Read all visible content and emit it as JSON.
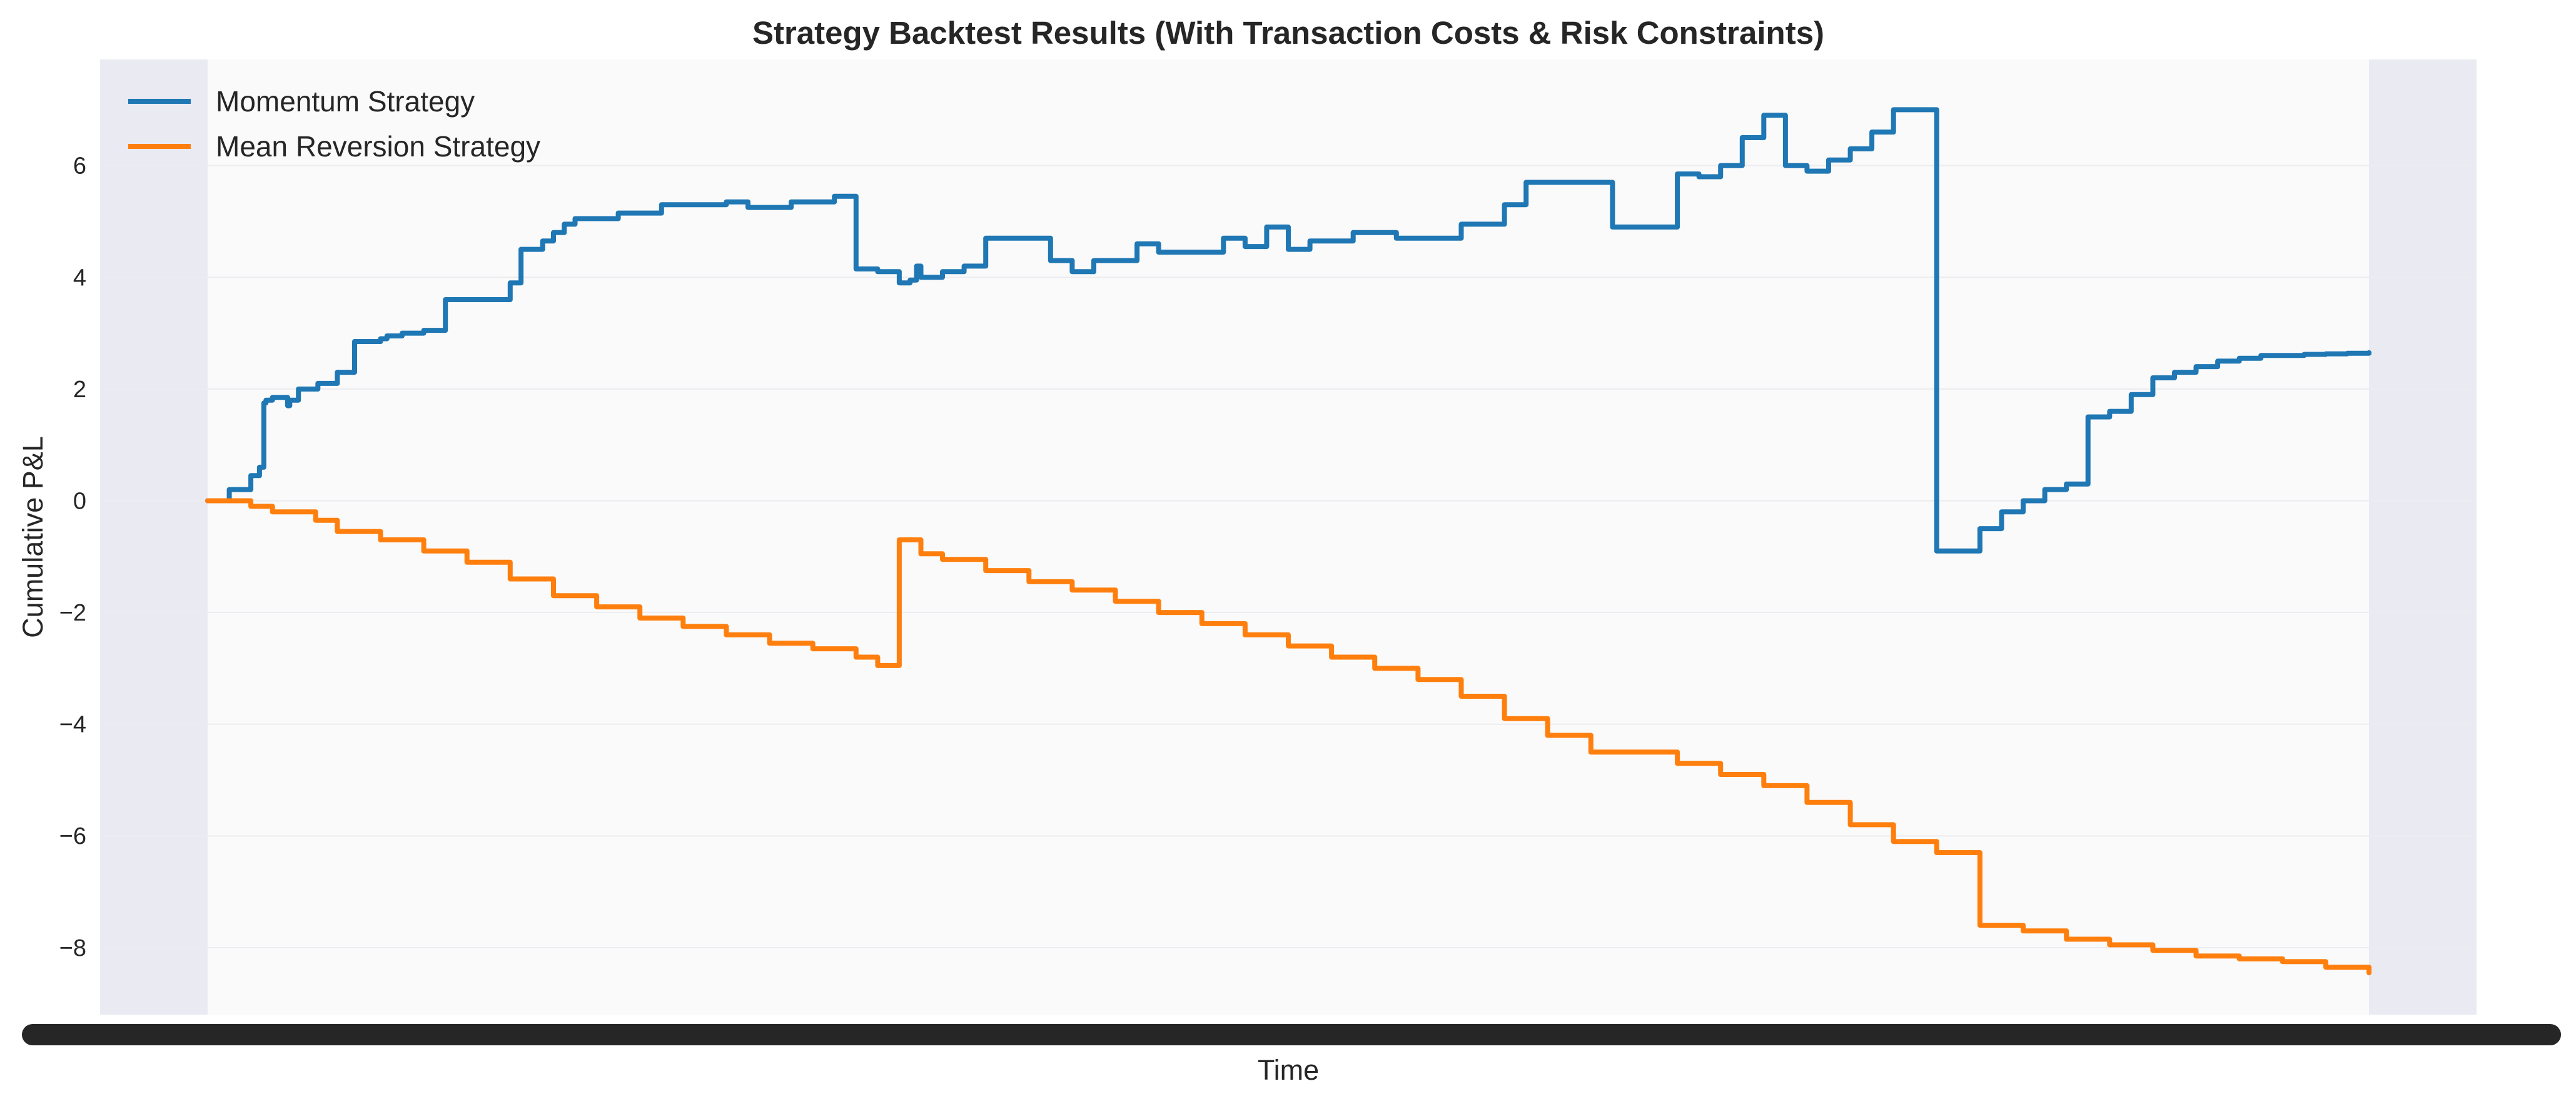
{
  "chart_data": {
    "type": "line",
    "title": "Strategy Backtest Results (With Transaction Costs & Risk Constraints)",
    "xlabel": "Time",
    "ylabel": "Cumulative P&L",
    "ylim": [
      -9.2,
      7.9
    ],
    "yticks": [
      -8,
      -6,
      -4,
      -2,
      0,
      2,
      4,
      6
    ],
    "ytick_labels": [
      "−8",
      "−6",
      "−4",
      "−2",
      "0",
      "2",
      "4",
      "6"
    ],
    "xlim": [
      -0.05,
      1.05
    ],
    "x_tick_labels_overlapping": true,
    "grid": true,
    "legend_position": "upper-left",
    "colors": {
      "background": "#eaeaf2",
      "plot_area_shaded": "#fafafa",
      "grid": "#ececf1",
      "text": "#262626"
    },
    "series": [
      {
        "name": "Momentum Strategy",
        "color": "#1f77b4",
        "x": [
          0.0,
          0.01,
          0.02,
          0.024,
          0.026,
          0.027,
          0.03,
          0.037,
          0.038,
          0.042,
          0.05,
          0.051,
          0.06,
          0.068,
          0.08,
          0.083,
          0.09,
          0.095,
          0.1,
          0.11,
          0.14,
          0.145,
          0.155,
          0.16,
          0.165,
          0.17,
          0.19,
          0.21,
          0.23,
          0.24,
          0.25,
          0.27,
          0.29,
          0.3,
          0.31,
          0.32,
          0.325,
          0.328,
          0.33,
          0.34,
          0.35,
          0.36,
          0.39,
          0.4,
          0.41,
          0.43,
          0.44,
          0.47,
          0.48,
          0.49,
          0.5,
          0.51,
          0.53,
          0.55,
          0.58,
          0.6,
          0.61,
          0.65,
          0.68,
          0.69,
          0.7,
          0.71,
          0.72,
          0.73,
          0.74,
          0.75,
          0.76,
          0.77,
          0.78,
          0.79,
          0.8,
          0.82,
          0.83,
          0.84,
          0.85,
          0.86,
          0.87,
          0.88,
          0.89,
          0.9,
          0.91,
          0.92,
          0.93,
          0.94,
          0.95,
          0.96,
          0.97,
          0.98,
          0.99,
          1.0
        ],
        "y": [
          0.0,
          0.2,
          0.45,
          0.6,
          1.75,
          1.8,
          1.85,
          1.7,
          1.8,
          2.0,
          2.0,
          2.1,
          2.3,
          2.85,
          2.9,
          2.95,
          3.0,
          3.0,
          3.05,
          3.6,
          3.9,
          4.5,
          4.65,
          4.8,
          4.95,
          5.05,
          5.15,
          5.3,
          5.3,
          5.35,
          5.25,
          5.35,
          5.45,
          4.15,
          4.1,
          3.9,
          3.95,
          4.2,
          4.0,
          4.1,
          4.2,
          4.7,
          4.3,
          4.1,
          4.3,
          4.6,
          4.45,
          4.7,
          4.55,
          4.9,
          4.5,
          4.65,
          4.8,
          4.7,
          4.95,
          5.3,
          5.7,
          4.9,
          5.85,
          5.8,
          6.0,
          6.5,
          6.9,
          6.0,
          5.9,
          6.1,
          6.3,
          6.6,
          7.0,
          7.0,
          -0.9,
          -0.5,
          -0.2,
          0.0,
          0.2,
          0.3,
          1.5,
          1.6,
          1.9,
          2.2,
          2.3,
          2.4,
          2.5,
          2.55,
          2.6,
          2.6,
          2.62,
          2.63,
          2.64,
          2.65
        ]
      },
      {
        "name": "Mean Reversion Strategy",
        "color": "#ff7f0e",
        "x": [
          0.0,
          0.02,
          0.03,
          0.05,
          0.06,
          0.08,
          0.1,
          0.12,
          0.14,
          0.16,
          0.18,
          0.2,
          0.22,
          0.24,
          0.26,
          0.28,
          0.3,
          0.31,
          0.32,
          0.33,
          0.34,
          0.36,
          0.38,
          0.4,
          0.42,
          0.44,
          0.46,
          0.48,
          0.5,
          0.52,
          0.54,
          0.56,
          0.58,
          0.6,
          0.62,
          0.64,
          0.66,
          0.68,
          0.7,
          0.72,
          0.74,
          0.76,
          0.78,
          0.8,
          0.82,
          0.84,
          0.86,
          0.88,
          0.9,
          0.92,
          0.94,
          0.96,
          0.98,
          1.0
        ],
        "y": [
          0.0,
          -0.1,
          -0.2,
          -0.35,
          -0.55,
          -0.7,
          -0.9,
          -1.1,
          -1.4,
          -1.7,
          -1.9,
          -2.1,
          -2.25,
          -2.4,
          -2.55,
          -2.65,
          -2.8,
          -2.95,
          -0.7,
          -0.95,
          -1.05,
          -1.25,
          -1.45,
          -1.6,
          -1.8,
          -2.0,
          -2.2,
          -2.4,
          -2.6,
          -2.8,
          -3.0,
          -3.2,
          -3.5,
          -3.9,
          -4.2,
          -4.5,
          -4.5,
          -4.7,
          -4.9,
          -5.1,
          -5.4,
          -5.8,
          -6.1,
          -6.3,
          -7.6,
          -7.7,
          -7.85,
          -7.95,
          -8.05,
          -8.15,
          -8.2,
          -8.25,
          -8.35,
          -8.45
        ]
      }
    ]
  }
}
